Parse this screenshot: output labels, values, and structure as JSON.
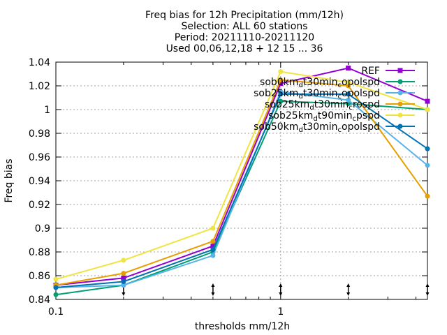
{
  "chart_data": {
    "type": "line",
    "title_lines": [
      "Freq bias  for 12h Precipitation (mm/12h)",
      "Selection: ALL     60 stations",
      "Period: 20211110-20211120",
      "Used 00,06,12,18 + 12 15 ... 36"
    ],
    "xlabel": "thresholds mm/12h",
    "ylabel": "Freq bias",
    "x_scale": "log",
    "xlim": [
      0.1,
      4.5
    ],
    "ylim": [
      0.84,
      1.04
    ],
    "x_ticks": [
      {
        "v": 0.1,
        "label": "0.1"
      },
      {
        "v": 1,
        "label": "1"
      }
    ],
    "y_ticks": [
      {
        "v": 0.84,
        "label": "0.84"
      },
      {
        "v": 0.86,
        "label": "0.86"
      },
      {
        "v": 0.88,
        "label": "0.88"
      },
      {
        "v": 0.9,
        "label": "0.9"
      },
      {
        "v": 0.92,
        "label": "0.92"
      },
      {
        "v": 0.94,
        "label": "0.94"
      },
      {
        "v": 0.96,
        "label": "0.96"
      },
      {
        "v": 0.98,
        "label": "0.98"
      },
      {
        "v": 1,
        "label": "1"
      },
      {
        "v": 1.02,
        "label": "1.02"
      },
      {
        "v": 1.04,
        "label": "1.04"
      }
    ],
    "grid": true,
    "legend_position": "top-right",
    "x": [
      0.1,
      0.2,
      0.5,
      1,
      2,
      4.5
    ],
    "series": [
      {
        "name": "REF",
        "color": "#9400d3",
        "marker": "square",
        "values": [
          0.852,
          0.858,
          0.885,
          1.022,
          1.035,
          1.007
        ]
      },
      {
        "name": "sob0km_dt30min_copolspd",
        "legend_rich": [
          [
            "sob0km",
            ""
          ],
          [
            "d",
            "sub"
          ],
          [
            "t30min",
            ""
          ],
          [
            "c",
            "sub"
          ],
          [
            "opolspd",
            ""
          ]
        ],
        "color": "#009e73",
        "marker": "circle",
        "values": [
          0.844,
          0.852,
          0.88,
          1.007,
          1.005,
          1.0
        ]
      },
      {
        "name": "sob25km_dt30min_copolspd",
        "legend_rich": [
          [
            "sob25km",
            ""
          ],
          [
            "d",
            "sub"
          ],
          [
            "t30min",
            ""
          ],
          [
            "c",
            "sub"
          ],
          [
            "opolspd",
            ""
          ]
        ],
        "color": "#56b4e9",
        "marker": "circle",
        "values": [
          0.85,
          0.852,
          0.877,
          1.015,
          1.008,
          0.953
        ]
      },
      {
        "name": "sob25km_dt30min_crospd",
        "legend_rich": [
          [
            "sob25km",
            ""
          ],
          [
            "d",
            "sub"
          ],
          [
            "t30min",
            ""
          ],
          [
            "c",
            "sub"
          ],
          [
            "rospd",
            ""
          ]
        ],
        "color": "#e69f00",
        "marker": "circle",
        "values": [
          0.852,
          0.862,
          0.889,
          1.025,
          1.02,
          0.927
        ]
      },
      {
        "name": "sob25km_dt90min_cpspd",
        "legend_rich": [
          [
            "sob25km",
            ""
          ],
          [
            "d",
            "sub"
          ],
          [
            "t90min",
            ""
          ],
          [
            "c",
            "sub"
          ],
          [
            "pspd",
            ""
          ]
        ],
        "color": "#f0e442",
        "marker": "circle",
        "values": [
          0.857,
          0.873,
          0.9,
          1.032,
          1.023,
          1.0
        ]
      },
      {
        "name": "sob50km_dt30min_copolspd",
        "legend_rich": [
          [
            "sob50km",
            ""
          ],
          [
            "d",
            "sub"
          ],
          [
            "t30min",
            ""
          ],
          [
            "c",
            "sub"
          ],
          [
            "opolspd",
            ""
          ]
        ],
        "color": "#0072b2",
        "marker": "circle",
        "values": [
          0.85,
          0.855,
          0.882,
          1.013,
          1.013,
          0.967
        ]
      }
    ],
    "tick_markers_x": [
      0.2,
      0.5,
      1,
      2,
      4.5
    ]
  }
}
